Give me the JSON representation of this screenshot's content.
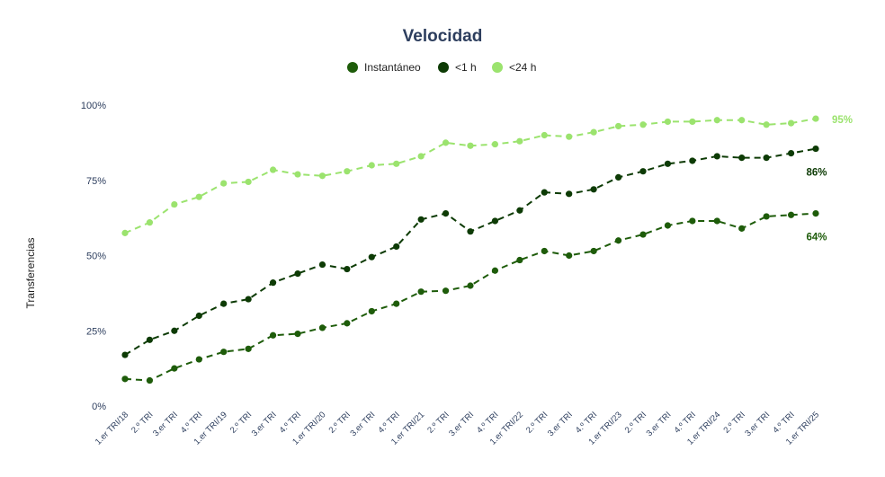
{
  "chart_data": {
    "type": "line",
    "title": "Velocidad",
    "ylabel": "Transferencias",
    "xlabel": "",
    "ylim": [
      0,
      100
    ],
    "yticks": [
      0,
      25,
      50,
      75,
      100
    ],
    "ytick_labels": [
      "0%",
      "25%",
      "50%",
      "75%",
      "100%"
    ],
    "legend_position": "top-center",
    "grid": false,
    "categories": [
      "1.er TRI/18",
      "2.º TRI",
      "3.er TRI",
      "4.º TRI",
      "1.er TRI/19",
      "2.º TRI",
      "3.er TRI",
      "4.º TRI",
      "1.er TRI/20",
      "2.º TRI",
      "3.er TRI",
      "4.º TRI",
      "1.er TRI/21",
      "2.º TRI",
      "3.er TRI",
      "4.º TRI",
      "1.er TRI/22",
      "2.º TRI",
      "3.er TRI",
      "4.º TRI",
      "1.er TRI/23",
      "2.º TRI",
      "3.er TRI",
      "4.º TRI",
      "1.er TRI/24",
      "2.º TRI",
      "3.er TRI",
      "4.º TRI",
      "1.er TRI/25"
    ],
    "series": [
      {
        "name": "Instantáneo",
        "color": "#1e5c0a",
        "end_label": "64%",
        "values": [
          9,
          8.5,
          12.5,
          15.5,
          18,
          19,
          23.5,
          24,
          26,
          27.5,
          31.5,
          34,
          38,
          38.3,
          40,
          45,
          48.5,
          51.5,
          50,
          51.5,
          55,
          57,
          60,
          61.5,
          61.5,
          59,
          63,
          63.5,
          64
        ]
      },
      {
        "name": "<1 h",
        "color": "#0d3b05",
        "end_label": "86%",
        "values": [
          17,
          22,
          25,
          30,
          34,
          35.5,
          41,
          44,
          47,
          45.5,
          49.5,
          53,
          62,
          64,
          58,
          61.5,
          65,
          71,
          70.5,
          72,
          76,
          78,
          80.5,
          81.5,
          83,
          82.5,
          82.5,
          84,
          85.5
        ]
      },
      {
        "name": "<24 h",
        "color": "#9be36e",
        "end_label": "95%",
        "values": [
          57.5,
          61,
          67,
          69.5,
          74,
          74.5,
          78.5,
          77,
          76.5,
          78,
          80,
          80.5,
          83,
          87.5,
          86.5,
          87,
          88,
          90,
          89.5,
          91,
          93,
          93.5,
          94.5,
          94.5,
          95,
          95,
          93.5,
          94,
          95.5
        ]
      }
    ]
  }
}
